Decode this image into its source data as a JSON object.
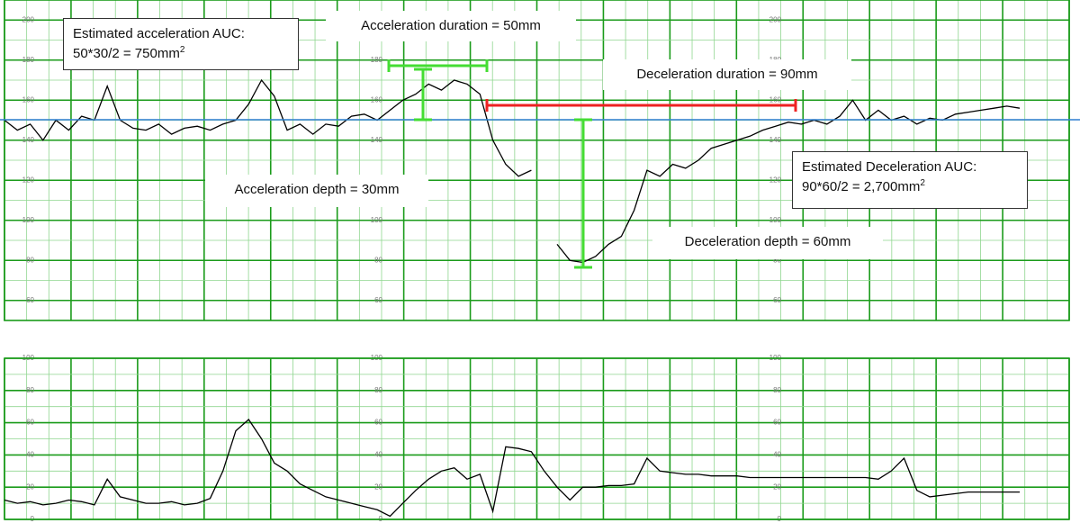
{
  "chart_data": [
    {
      "type": "line",
      "series": [
        {
          "color": "#000000",
          "values": [
            150,
            145,
            148,
            140,
            150,
            145,
            152,
            150,
            167,
            150,
            146,
            145,
            148,
            143,
            146,
            147,
            145,
            148,
            150,
            158,
            170,
            162,
            145,
            148,
            143,
            148,
            147,
            152,
            153,
            150,
            155,
            160,
            163,
            168,
            165,
            170,
            168,
            163,
            140,
            128,
            122,
            125,
            null,
            88,
            80,
            79,
            82,
            88,
            92,
            105,
            125,
            122,
            128,
            126,
            130,
            136,
            138,
            140,
            142,
            145,
            147,
            149,
            148,
            150,
            148,
            152,
            160,
            150,
            155,
            150,
            152,
            148,
            151,
            150,
            153,
            154,
            155,
            156,
            157,
            156
          ]
        }
      ],
      "ylim": [
        50,
        210
      ],
      "yticks": [
        60,
        80,
        100,
        120,
        140,
        160,
        180,
        200
      ],
      "grid": true
    },
    {
      "type": "line",
      "series": [
        {
          "color": "#000000",
          "values": [
            12,
            10,
            11,
            9,
            10,
            12,
            11,
            9,
            25,
            14,
            12,
            10,
            10,
            11,
            9,
            10,
            13,
            30,
            55,
            62,
            50,
            35,
            30,
            22,
            18,
            14,
            12,
            10,
            8,
            6,
            2,
            10,
            18,
            25,
            30,
            32,
            25,
            28,
            5,
            45,
            44,
            42,
            30,
            20,
            12,
            20,
            20,
            21,
            21,
            22,
            38,
            30,
            29,
            28,
            28,
            27,
            27,
            27,
            26,
            26,
            26,
            26,
            26,
            26,
            26,
            26,
            26,
            26,
            25,
            30,
            38,
            18,
            14,
            15,
            16,
            17,
            17,
            17,
            17,
            17
          ]
        }
      ],
      "ylim": [
        0,
        100
      ],
      "yticks": [
        0,
        20,
        40,
        60,
        80,
        100
      ],
      "grid": true
    }
  ],
  "annotations": {
    "accel_auc": {
      "line1": "Estimated acceleration AUC:",
      "line2": "50*30/2 =  750mm",
      "sup": "2"
    },
    "accel_duration": "Acceleration duration = 50mm",
    "decel_duration": "Deceleration duration = 90mm",
    "accel_depth": "Acceleration depth = 30mm",
    "decel_auc": {
      "line1": "Estimated Deceleration AUC:",
      "line2": "90*60/2 =  2,700mm",
      "sup": "2"
    },
    "decel_depth": "Deceleration depth = 60mm"
  }
}
